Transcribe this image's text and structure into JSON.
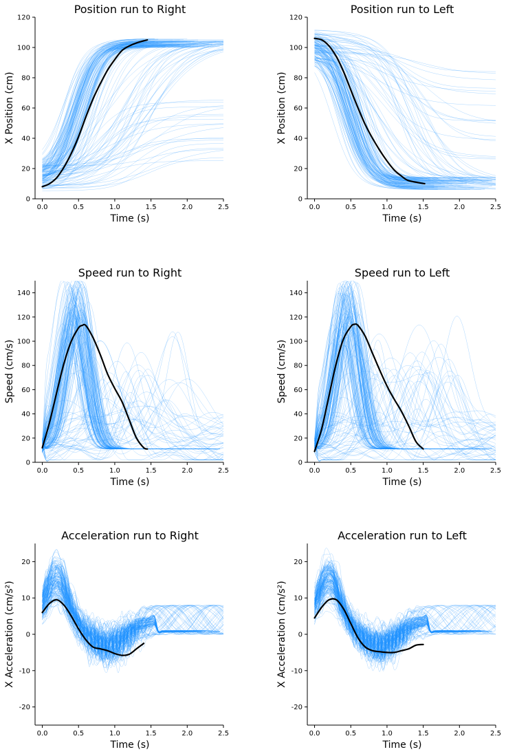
{
  "colors": {
    "trials": "#1E90FF",
    "mean": "#000000"
  },
  "chart_data": [
    {
      "type": "line",
      "title": "Position run to Right",
      "xlabel": "Time (s)",
      "ylabel": "X Position (cm)",
      "xlim": [
        -0.1,
        2.5
      ],
      "ylim": [
        0,
        120
      ],
      "xticks": [
        "0.0",
        "0.5",
        "1.0",
        "1.5",
        "2.0",
        "2.5"
      ],
      "yticks": [
        "0",
        "20",
        "40",
        "60",
        "80",
        "100",
        "120"
      ],
      "series": [
        {
          "x": [
            0.0,
            0.1,
            0.2,
            0.3,
            0.4,
            0.5,
            0.6,
            0.7,
            0.8,
            0.9,
            1.0,
            1.1,
            1.2,
            1.3,
            1.45
          ],
          "y": [
            8,
            10,
            14,
            21,
            30,
            41,
            54,
            66,
            76,
            85,
            92,
            98,
            101,
            103,
            105
          ]
        }
      ]
    },
    {
      "type": "line",
      "title": "Position run to Left",
      "xlabel": "Time (s)",
      "ylabel": "X Position (cm)",
      "xlim": [
        -0.1,
        2.5
      ],
      "ylim": [
        0,
        120
      ],
      "xticks": [
        "0.0",
        "0.5",
        "1.0",
        "1.5",
        "2.0",
        "2.5"
      ],
      "yticks": [
        "0",
        "20",
        "40",
        "60",
        "80",
        "100",
        "120"
      ],
      "series": [
        {
          "x": [
            0.0,
            0.1,
            0.2,
            0.3,
            0.4,
            0.5,
            0.6,
            0.7,
            0.8,
            0.9,
            1.0,
            1.1,
            1.2,
            1.3,
            1.52
          ],
          "y": [
            106,
            105,
            101,
            94,
            84,
            72,
            60,
            49,
            40,
            32,
            25,
            19,
            15,
            12,
            10
          ]
        }
      ]
    },
    {
      "type": "line",
      "title": "Speed run to Right",
      "xlabel": "Time (s)",
      "ylabel": "Speed (cm/s)",
      "xlim": [
        -0.1,
        2.5
      ],
      "ylim": [
        0,
        150
      ],
      "xticks": [
        "0.0",
        "0.5",
        "1.0",
        "1.5",
        "2.0",
        "2.5"
      ],
      "yticks": [
        "0",
        "20",
        "40",
        "60",
        "80",
        "100",
        "120",
        "140"
      ],
      "series": [
        {
          "x": [
            0.0,
            0.1,
            0.2,
            0.3,
            0.4,
            0.5,
            0.55,
            0.6,
            0.7,
            0.8,
            0.9,
            1.0,
            1.1,
            1.2,
            1.3,
            1.4,
            1.45
          ],
          "y": [
            12,
            33,
            58,
            82,
            100,
            111,
            113,
            113,
            103,
            89,
            73,
            61,
            50,
            35,
            20,
            12,
            11
          ]
        }
      ]
    },
    {
      "type": "line",
      "title": "Speed run to Left",
      "xlabel": "Time (s)",
      "ylabel": "Speed (cm/s)",
      "xlim": [
        -0.1,
        2.5
      ],
      "ylim": [
        0,
        150
      ],
      "xticks": [
        "0.0",
        "0.5",
        "1.0",
        "1.5",
        "2.0",
        "2.5"
      ],
      "yticks": [
        "0",
        "20",
        "40",
        "60",
        "80",
        "100",
        "120",
        "140"
      ],
      "series": [
        {
          "x": [
            0.0,
            0.1,
            0.2,
            0.3,
            0.4,
            0.5,
            0.55,
            0.6,
            0.7,
            0.8,
            0.9,
            1.0,
            1.1,
            1.2,
            1.3,
            1.4,
            1.5
          ],
          "y": [
            9,
            28,
            55,
            82,
            102,
            112,
            114,
            113,
            104,
            90,
            76,
            63,
            52,
            42,
            30,
            17,
            11
          ]
        }
      ]
    },
    {
      "type": "line",
      "title": "Acceleration run to Right",
      "xlabel": "Time (s)",
      "ylabel": "X Acceleration (cm/s²)",
      "xlim": [
        -0.1,
        2.5
      ],
      "ylim": [
        -25,
        25
      ],
      "xticks": [
        "0.0",
        "0.5",
        "1.0",
        "1.5",
        "2.0",
        "2.5"
      ],
      "yticks": [
        "-20",
        "-10",
        "0",
        "10",
        "20"
      ],
      "series": [
        {
          "x": [
            0.0,
            0.1,
            0.2,
            0.3,
            0.4,
            0.5,
            0.6,
            0.7,
            0.8,
            0.9,
            1.0,
            1.1,
            1.2,
            1.3,
            1.4
          ],
          "y": [
            6,
            8.5,
            9.5,
            8,
            5,
            1.5,
            -1.5,
            -3.5,
            -4,
            -4.5,
            -5.3,
            -5.8,
            -5.5,
            -4,
            -2.5
          ]
        }
      ]
    },
    {
      "type": "line",
      "title": "Acceleration run to Left",
      "xlabel": "Time (s)",
      "ylabel": "X Acceleration (cm/s²)",
      "xlim": [
        -0.1,
        2.5
      ],
      "ylim": [
        -25,
        25
      ],
      "xticks": [
        "0.0",
        "0.5",
        "1.0",
        "1.5",
        "2.0",
        "2.5"
      ],
      "yticks": [
        "-20",
        "-10",
        "0",
        "10",
        "20"
      ],
      "series": [
        {
          "x": [
            0.0,
            0.1,
            0.2,
            0.3,
            0.4,
            0.5,
            0.6,
            0.7,
            0.8,
            0.9,
            1.0,
            1.1,
            1.2,
            1.3,
            1.4,
            1.5
          ],
          "y": [
            4.5,
            7.5,
            9.5,
            9.5,
            7,
            3,
            -1,
            -3.5,
            -4.5,
            -4.8,
            -5,
            -5,
            -4.5,
            -4,
            -3,
            -2.8
          ]
        }
      ]
    }
  ]
}
